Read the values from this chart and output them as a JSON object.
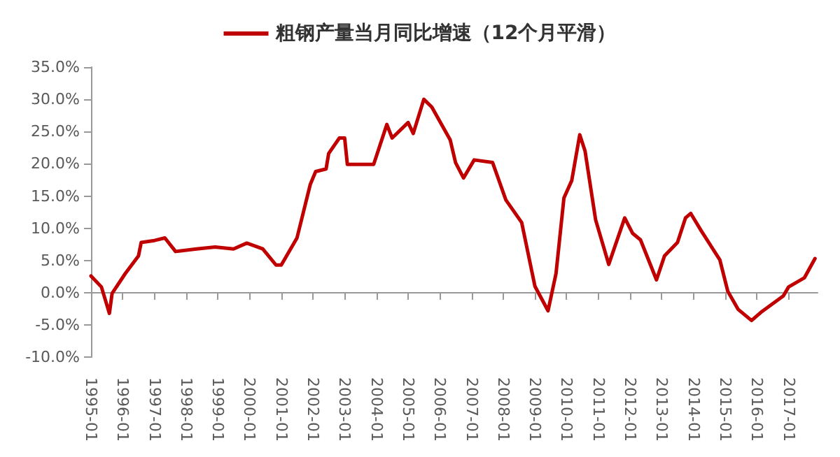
{
  "chart_data": {
    "type": "line",
    "legend": "top",
    "marker": "none",
    "line_style": "solid",
    "x": [
      "1995-01",
      "1995-05",
      "1995-08",
      "1995-09",
      "1996-02",
      "1996-07",
      "1996-08",
      "1997-01",
      "1997-05",
      "1997-09",
      "1998-05",
      "1998-12",
      "1999-07",
      "1999-12",
      "2000-06",
      "2000-11",
      "2001-01",
      "2001-07",
      "2001-12",
      "2002-02",
      "2002-06",
      "2002-07",
      "2002-11",
      "2003-01",
      "2003-02",
      "2003-12",
      "2004-05",
      "2004-07",
      "2005-01",
      "2005-03",
      "2005-07",
      "2005-10",
      "2006-05",
      "2006-07",
      "2006-10",
      "2007-02",
      "2007-09",
      "2008-02",
      "2008-08",
      "2009-01",
      "2009-06",
      "2009-09",
      "2009-12",
      "2010-03",
      "2010-06",
      "2010-08",
      "2010-12",
      "2011-05",
      "2011-11",
      "2012-02",
      "2012-05",
      "2012-11",
      "2013-02",
      "2013-07",
      "2013-10",
      "2013-12",
      "2014-04",
      "2014-11",
      "2015-02",
      "2015-06",
      "2015-11",
      "2016-03",
      "2016-11",
      "2017-01",
      "2017-07",
      "2017-11"
    ],
    "series": [
      {
        "name": "粗钢产量当月同比增速（12个月平滑）",
        "color": "#c00000",
        "values": [
          2.6,
          0.9,
          -3.2,
          -0.1,
          3.0,
          5.7,
          7.8,
          8.1,
          8.5,
          6.4,
          6.8,
          7.1,
          6.8,
          7.7,
          6.8,
          4.3,
          4.3,
          8.5,
          16.8,
          18.8,
          19.2,
          21.6,
          24.0,
          24.0,
          19.9,
          19.9,
          26.1,
          24.0,
          26.4,
          24.7,
          30.0,
          28.8,
          23.7,
          20.2,
          17.8,
          20.6,
          20.2,
          14.4,
          10.9,
          1.0,
          -2.8,
          3.0,
          14.7,
          17.4,
          24.5,
          22.0,
          11.3,
          4.4,
          11.6,
          9.2,
          8.2,
          2.0,
          5.7,
          7.8,
          11.6,
          12.3,
          9.6,
          5.1,
          0.2,
          -2.6,
          -4.3,
          -2.9,
          -0.5,
          0.9,
          2.3,
          5.3
        ]
      }
    ],
    "xlim": [
      "1995-01",
      "2017-12"
    ],
    "xticks": [
      {
        "value": "1995-01",
        "label": "1995-01"
      },
      {
        "value": "1996-01",
        "label": "1996-01"
      },
      {
        "value": "1997-01",
        "label": "1997-01"
      },
      {
        "value": "1998-01",
        "label": "1998-01"
      },
      {
        "value": "1999-01",
        "label": "1999-01"
      },
      {
        "value": "2000-01",
        "label": "2000-01"
      },
      {
        "value": "2001-01",
        "label": "2001-01"
      },
      {
        "value": "2002-01",
        "label": "2002-01"
      },
      {
        "value": "2003-01",
        "label": "2003-01"
      },
      {
        "value": "2004-01",
        "label": "2004-01"
      },
      {
        "value": "2005-01",
        "label": "2005-01"
      },
      {
        "value": "2006-01",
        "label": "2006-01"
      },
      {
        "value": "2007-01",
        "label": "2007-01"
      },
      {
        "value": "2008-01",
        "label": "2008-01"
      },
      {
        "value": "2009-01",
        "label": "2009-01"
      },
      {
        "value": "2010-01",
        "label": "2010-01"
      },
      {
        "value": "2011-01",
        "label": "2011-01"
      },
      {
        "value": "2012-01",
        "label": "2012-01"
      },
      {
        "value": "2013-01",
        "label": "2013-01"
      },
      {
        "value": "2014-01",
        "label": "2014-01"
      },
      {
        "value": "2015-01",
        "label": "2015-01"
      },
      {
        "value": "2016-01",
        "label": "2016-01"
      },
      {
        "value": "2017-01",
        "label": "2017-01"
      }
    ],
    "ylim": [
      -10,
      35
    ],
    "yticks": [
      {
        "value": -10,
        "label": "-10.0%"
      },
      {
        "value": -5,
        "label": "-5.0%"
      },
      {
        "value": 0,
        "label": "0.0%"
      },
      {
        "value": 5,
        "label": "5.0%"
      },
      {
        "value": 10,
        "label": "10.0%"
      },
      {
        "value": 15,
        "label": "15.0%"
      },
      {
        "value": 20,
        "label": "20.0%"
      },
      {
        "value": 25,
        "label": "25.0%"
      },
      {
        "value": 30,
        "label": "30.0%"
      },
      {
        "value": 35,
        "label": "35.0%"
      }
    ]
  }
}
